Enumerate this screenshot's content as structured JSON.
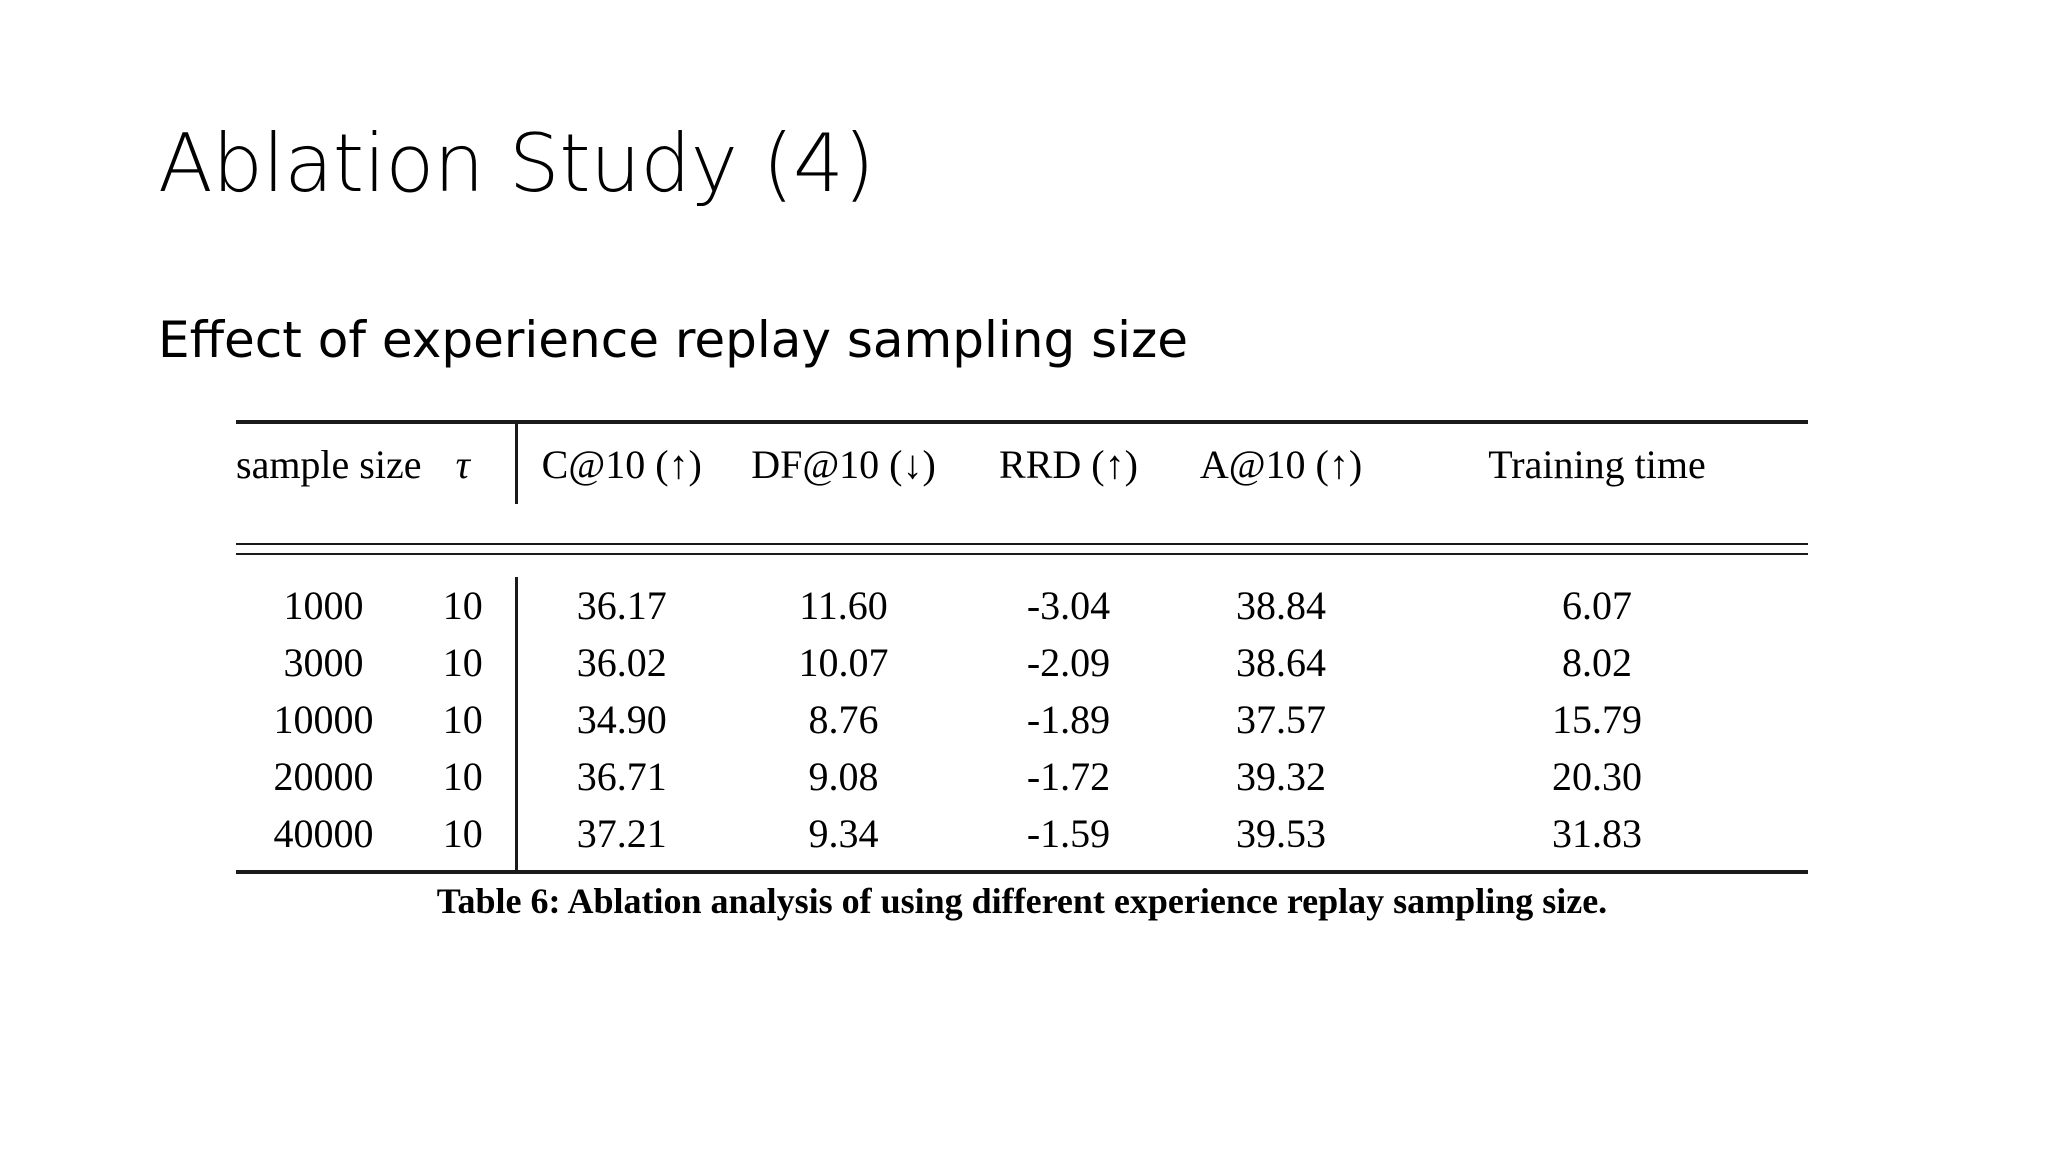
{
  "slide": {
    "title": "Ablation Study (4)",
    "subtitle": "Effect of experience replay sampling size"
  },
  "table": {
    "columns": [
      "sample size",
      "τ",
      "C@10 (↑)",
      "DF@10 (↓)",
      "RRD (↑)",
      "A@10 (↑)",
      "Training time"
    ],
    "rows": [
      [
        "1000",
        "10",
        "36.17",
        "11.60",
        "-3.04",
        "38.84",
        "6.07"
      ],
      [
        "3000",
        "10",
        "36.02",
        "10.07",
        "-2.09",
        "38.64",
        "8.02"
      ],
      [
        "10000",
        "10",
        "34.90",
        "8.76",
        "-1.89",
        "37.57",
        "15.79"
      ],
      [
        "20000",
        "10",
        "36.71",
        "9.08",
        "-1.72",
        "39.32",
        "20.30"
      ],
      [
        "40000",
        "10",
        "37.21",
        "9.34",
        "-1.59",
        "39.53",
        "31.83"
      ]
    ],
    "bold_cells": [
      [
        2,
        3
      ],
      [
        4,
        2
      ],
      [
        4,
        4
      ],
      [
        4,
        5
      ]
    ],
    "caption": "Table 6: Ablation analysis of using different experience replay sampling size."
  }
}
